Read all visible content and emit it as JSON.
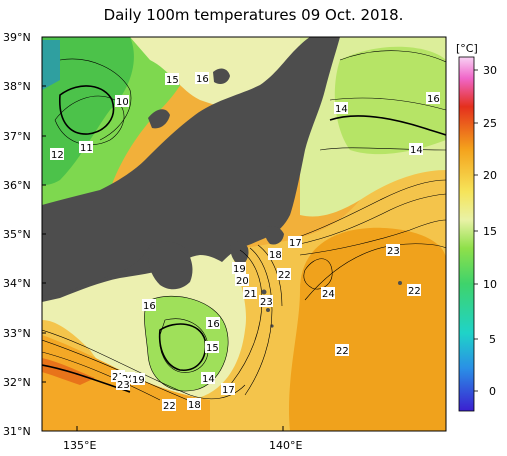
{
  "title": "Daily 100m temperatures 09 Oct. 2018.",
  "map": {
    "lat_labels": [
      "39°N",
      "38°N",
      "37°N",
      "36°N",
      "35°N",
      "34°N",
      "33°N",
      "32°N",
      "31°N"
    ],
    "lon_labels": [
      "135°E",
      "140°E"
    ],
    "lat_range": [
      31,
      39
    ],
    "lon_range": [
      134.2,
      142.9
    ]
  },
  "colorbar": {
    "unit": "[°C]",
    "ticks": [
      "30",
      "25",
      "20",
      "15",
      "10",
      "5",
      "0"
    ],
    "range": [
      -2,
      31
    ]
  },
  "contour_labels": [
    "15",
    "16",
    "10",
    "11",
    "12",
    "14",
    "16",
    "14",
    "17",
    "18",
    "19",
    "20",
    "21",
    "22",
    "23",
    "23",
    "22",
    "24",
    "16",
    "16",
    "15",
    "14",
    "17",
    "18",
    "22",
    "22",
    "21",
    "20",
    "19",
    "23"
  ],
  "colors": {
    "land": "#4d4d4d",
    "warm": "#f0a21c",
    "mid": "#f6d24d",
    "cool": "#ecf0b0",
    "green": "#61d24a"
  }
}
